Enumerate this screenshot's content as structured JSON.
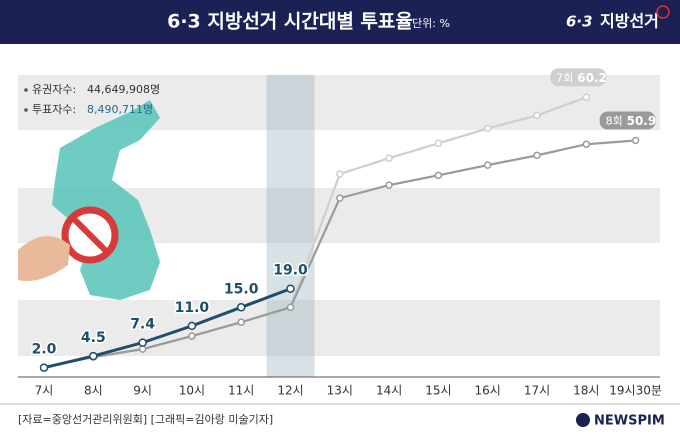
{
  "chart_data": {
    "type": "line",
    "title": "6·3 지방선거 시간대별 투표율",
    "unit": "단위: %",
    "logo": {
      "mark": "6·3",
      "text": "지방선거"
    },
    "info": [
      {
        "label": "유권자수:",
        "value": "44,649,908명"
      },
      {
        "label": "투표자수:",
        "value": "8,490,711명"
      }
    ],
    "categories": [
      "7시",
      "8시",
      "9시",
      "10시",
      "11시",
      "12시",
      "13시",
      "14시",
      "15시",
      "16시",
      "17시",
      "18시",
      "19시30분"
    ],
    "ylim": [
      0,
      65
    ],
    "series": [
      {
        "color": "#1d4e6a",
        "values": [
          2.0,
          4.5,
          7.4,
          11.0,
          15.0,
          19.0,
          null,
          null,
          null,
          null,
          null,
          null,
          null
        ],
        "value_labels": [
          "2.0",
          "4.5",
          "7.4",
          "11.0",
          "15.0",
          "19.0",
          null,
          null,
          null,
          null,
          null,
          null,
          null
        ]
      },
      {
        "name": "8회",
        "color": "#9a9a9a",
        "values": [
          2.1,
          4.3,
          6.0,
          8.8,
          11.8,
          15.0,
          38.5,
          41.3,
          43.4,
          45.6,
          47.7,
          50.1,
          50.9
        ]
      },
      {
        "name": "7회",
        "color": "#cfcfcf",
        "values": [
          2.1,
          4.3,
          6.0,
          8.8,
          11.8,
          15.0,
          43.7,
          47.1,
          50.3,
          53.5,
          56.3,
          60.2,
          null
        ]
      }
    ],
    "highlight_category": "12시",
    "source": "[자료=중앙선거관리위원회] [그래픽=김아랑 미술기자]",
    "brand": "NEWSPIM"
  }
}
